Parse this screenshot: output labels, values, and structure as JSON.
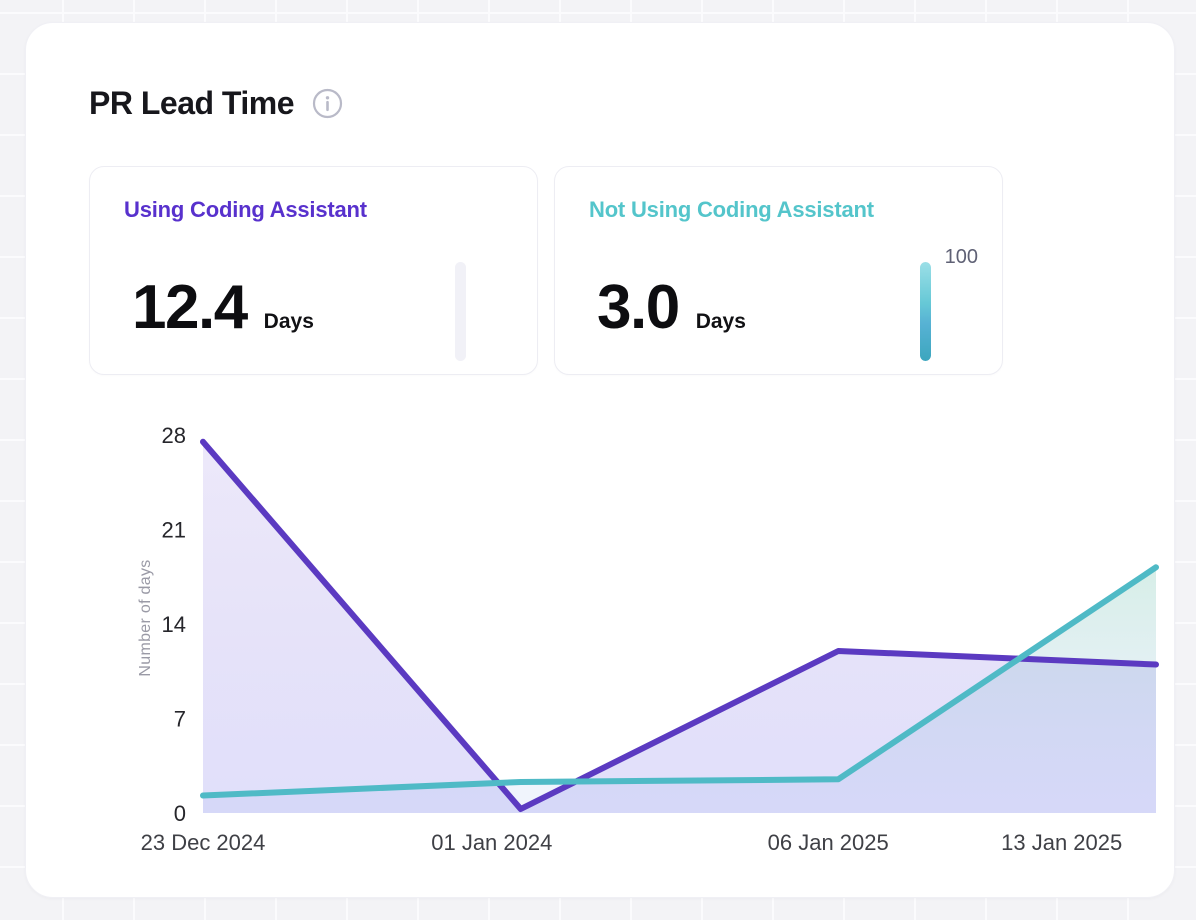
{
  "header": {
    "title": "PR Lead Time",
    "info_icon": "info-icon"
  },
  "stats": [
    {
      "label": "Using Coding Assistant",
      "value": "12.4",
      "unit": "Days",
      "accent_color": "#5831cd",
      "bar": {
        "fill_percent": 0,
        "label": ""
      }
    },
    {
      "label": "Not Using Coding Assistant",
      "value": "3.0",
      "unit": "Days",
      "accent_color": "#54c5cb",
      "bar": {
        "fill_percent": 100,
        "label": "100"
      }
    }
  ],
  "chart_data": {
    "type": "line",
    "x": [
      "23 Dec 2024",
      "01 Jan 2024",
      "06 Jan 2025",
      "13 Jan 2025"
    ],
    "series": [
      {
        "name": "Using Coding Assistant",
        "color": "#5b3ac1",
        "area": true,
        "values": [
          27.5,
          0.3,
          12,
          11
        ]
      },
      {
        "name": "Not Using Coding Assistant",
        "color": "#4fbac6",
        "area": true,
        "values": [
          1.3,
          2.3,
          2.5,
          18.2
        ]
      }
    ],
    "title": "PR Lead Time",
    "xlabel": "",
    "ylabel": "Number of days",
    "yticks": [
      0,
      7,
      14,
      21,
      28
    ],
    "ylim": [
      0,
      28
    ],
    "grid": false,
    "legend_position": "none"
  }
}
